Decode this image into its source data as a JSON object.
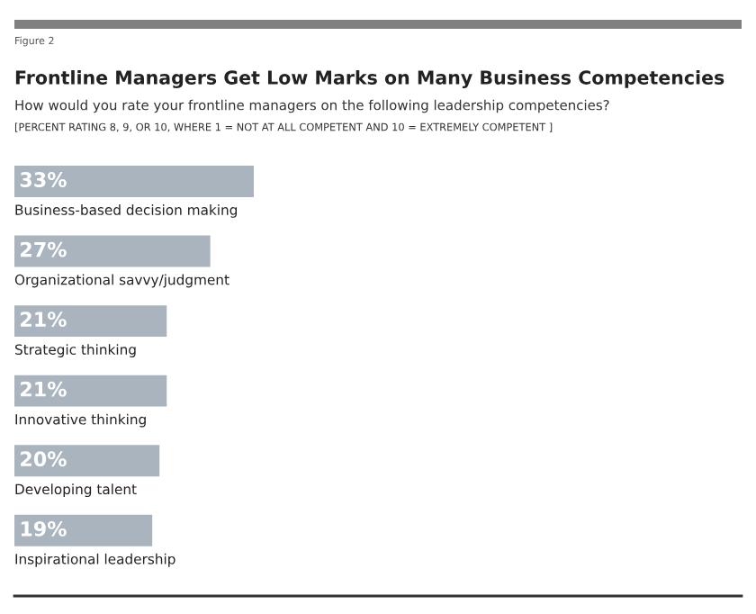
{
  "chart_data": {
    "type": "bar",
    "orientation": "horizontal",
    "title": "Frontline Managers Get Low Marks on Many Business Competencies",
    "subtitle": "How would you rate your frontline managers on the following leadership competencies?",
    "annotations": [
      "Figure 2",
      "[PERCENT RATING 8, 9, OR 10, WHERE 1 = NOT AT ALL COMPETENT AND 10 = EXTREMELY COMPETENT ]"
    ],
    "categories": [
      "Business-based decision making",
      "Organizational savvy/judgment",
      "Strategic thinking",
      "Innovative thinking",
      "Developing talent",
      "Inspirational leadership"
    ],
    "values": [
      33,
      27,
      21,
      21,
      20,
      19
    ],
    "value_labels": [
      "33%",
      "27%",
      "21%",
      "21%",
      "20%",
      "19%"
    ],
    "color": "#a9b4be"
  }
}
